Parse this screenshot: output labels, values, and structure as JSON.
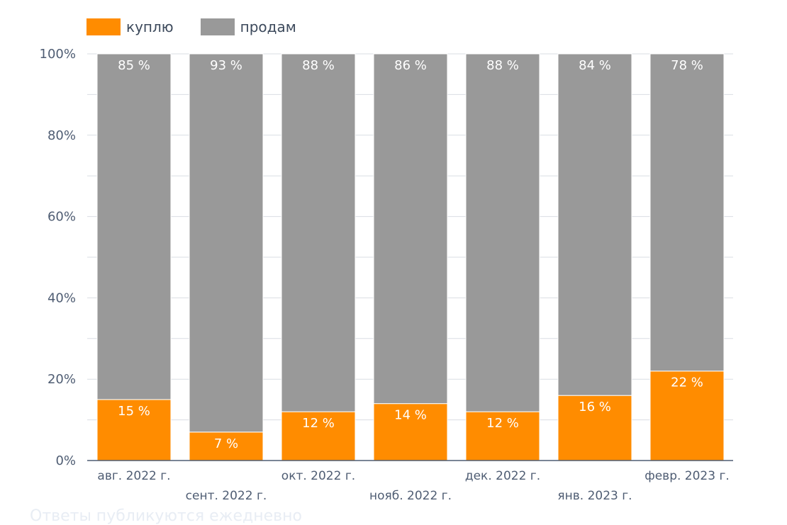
{
  "chart_data": {
    "type": "bar",
    "stacked": true,
    "categories": [
      "авг. 2022 г.",
      "сент. 2022 г.",
      "окт. 2022 г.",
      "нояб. 2022 г.",
      "дек. 2022 г.",
      "янв. 2023 г.",
      "февр. 2023 г."
    ],
    "series": [
      {
        "name": "куплю",
        "color": "#ff8c00",
        "values": [
          15,
          7,
          12,
          14,
          12,
          16,
          22
        ],
        "labels": [
          "15 %",
          "7 %",
          "12 %",
          "14 %",
          "12 %",
          "16 %",
          "22 %"
        ]
      },
      {
        "name": "продам",
        "color": "#999999",
        "values": [
          85,
          93,
          88,
          86,
          88,
          84,
          78
        ],
        "labels": [
          "85 %",
          "93 %",
          "88 %",
          "86 %",
          "88 %",
          "84 %",
          "78 %"
        ]
      }
    ],
    "y_ticks": [
      "0%",
      "20%",
      "40%",
      "60%",
      "80%",
      "100%"
    ],
    "ylim": [
      0,
      100
    ],
    "grid": true,
    "legend": "top-left"
  },
  "footer_text": "Ответы публикуются ежедневно"
}
